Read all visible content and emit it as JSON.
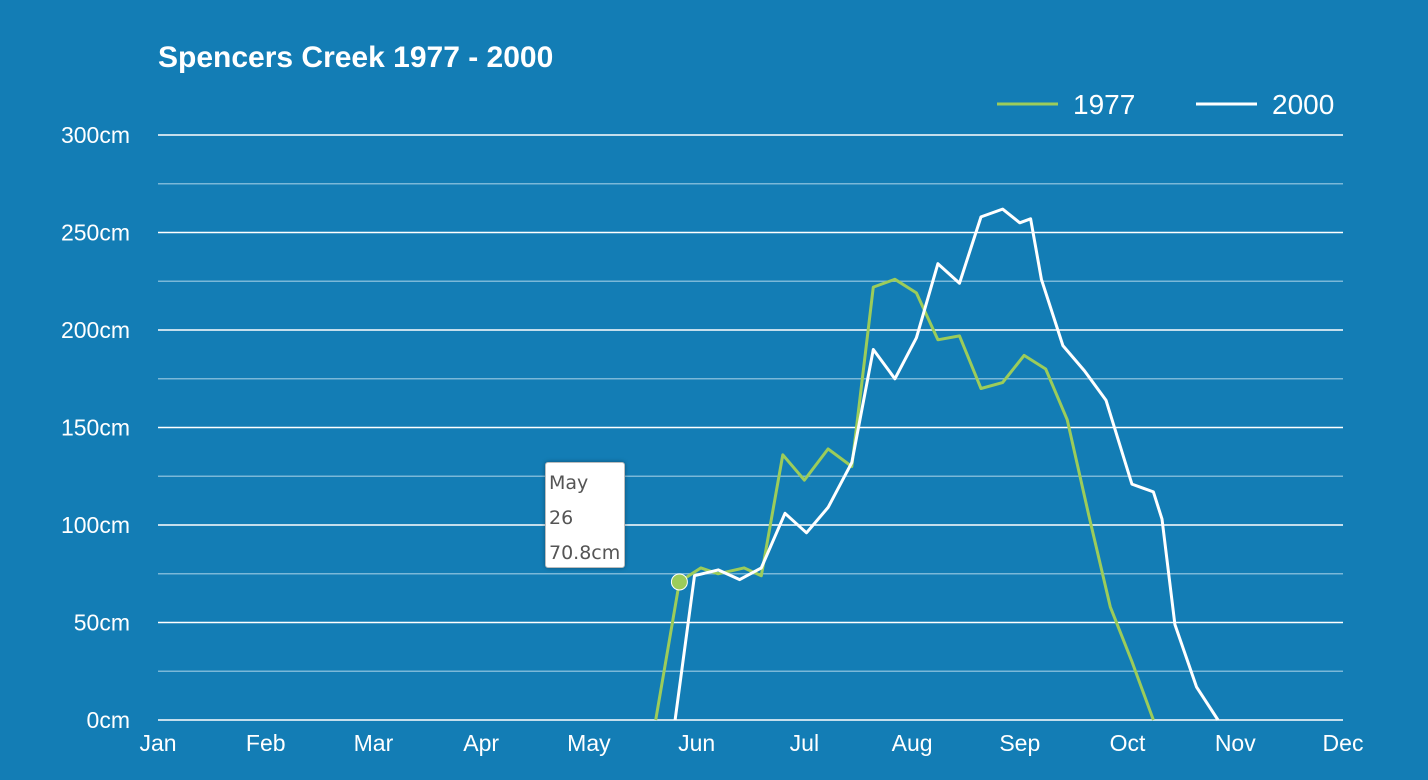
{
  "colors": {
    "background": "#137db5",
    "series_1977": "#9ccc5a",
    "series_2000": "#ffffff",
    "grid_major": "#ffffff",
    "grid_minor": "#7ab8d8"
  },
  "tooltip": {
    "month": "May",
    "day": "26",
    "value": "70.8cm",
    "series": "1977"
  },
  "chart_data": {
    "type": "line",
    "title": "Spencers Creek 1977 - 2000",
    "xlabel": "",
    "ylabel": "",
    "x_unit": "month",
    "xlim": [
      0,
      11
    ],
    "ylim": [
      0,
      300
    ],
    "grid": true,
    "legend": "top-right",
    "x_tick_labels": [
      "Jan",
      "Feb",
      "Mar",
      "Apr",
      "May",
      "Jun",
      "Jul",
      "Aug",
      "Sep",
      "Oct",
      "Nov",
      "Dec"
    ],
    "y_ticks": [
      0,
      50,
      100,
      150,
      200,
      250,
      300
    ],
    "y_tick_labels": [
      "0cm",
      "50cm",
      "100cm",
      "150cm",
      "200cm",
      "250cm",
      "300cm"
    ],
    "series": [
      {
        "name": "1977",
        "color": "#9ccc5a",
        "x": [
          4.62,
          4.84,
          5.04,
          5.2,
          5.44,
          5.6,
          5.8,
          6.0,
          6.22,
          6.44,
          6.64,
          6.84,
          7.04,
          7.24,
          7.44,
          7.64,
          7.84,
          8.04,
          8.24,
          8.44,
          8.64,
          8.84,
          9.04,
          9.24,
          9.44,
          9.62,
          9.84
        ],
        "y": [
          0,
          70.8,
          78,
          75,
          78,
          74,
          136,
          123,
          139,
          130,
          222,
          226,
          219,
          195,
          197,
          170,
          173,
          187,
          180,
          154,
          105,
          58,
          30,
          0,
          null,
          null,
          null
        ]
      },
      {
        "name": "2000",
        "color": "#ffffff",
        "x": [
          4.8,
          4.98,
          5.2,
          5.4,
          5.6,
          5.82,
          6.02,
          6.22,
          6.44,
          6.64,
          6.84,
          7.04,
          7.24,
          7.44,
          7.64,
          7.84,
          8.0,
          8.1,
          8.2,
          8.4,
          8.6,
          8.8,
          9.04,
          9.24,
          9.32,
          9.44,
          9.64,
          9.84,
          10.05
        ],
        "y": [
          0,
          74,
          77,
          72,
          78,
          106,
          96,
          109,
          132,
          190,
          175,
          196,
          234,
          224,
          258,
          262,
          255,
          257,
          226,
          192,
          179,
          164,
          121,
          117,
          103,
          49,
          17,
          0,
          null
        ]
      }
    ]
  }
}
